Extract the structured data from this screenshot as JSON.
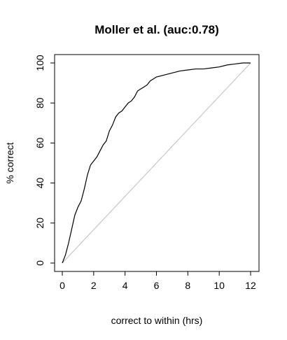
{
  "chart_data": {
    "type": "line",
    "title": "Moller et al. (auc:0.78)",
    "xlabel": "correct to within (hrs)",
    "ylabel": "% correct",
    "xlim": [
      0,
      12
    ],
    "ylim": [
      0,
      100
    ],
    "x_ticks": [
      0,
      2,
      4,
      6,
      8,
      10,
      12
    ],
    "y_ticks": [
      0,
      20,
      40,
      60,
      80,
      100
    ],
    "grid": false,
    "legend": "none",
    "colors": {
      "curve": "#000000",
      "reference": "#bebebe",
      "frame": "#000000"
    },
    "series": [
      {
        "values": [
          [
            0,
            0
          ],
          [
            0.2,
            4
          ],
          [
            0.4,
            10
          ],
          [
            0.6,
            17
          ],
          [
            0.8,
            24
          ],
          [
            1.0,
            28
          ],
          [
            1.2,
            31
          ],
          [
            1.4,
            37
          ],
          [
            1.6,
            44
          ],
          [
            1.8,
            49
          ],
          [
            2.0,
            51
          ],
          [
            2.2,
            53
          ],
          [
            2.4,
            56
          ],
          [
            2.6,
            59
          ],
          [
            2.8,
            61
          ],
          [
            3.0,
            66
          ],
          [
            3.2,
            69
          ],
          [
            3.4,
            73
          ],
          [
            3.6,
            75
          ],
          [
            3.8,
            76
          ],
          [
            4.0,
            78
          ],
          [
            4.2,
            80
          ],
          [
            4.4,
            81
          ],
          [
            4.6,
            83
          ],
          [
            4.8,
            86
          ],
          [
            5.0,
            87
          ],
          [
            5.2,
            88
          ],
          [
            5.4,
            89
          ],
          [
            5.6,
            91
          ],
          [
            5.8,
            92
          ],
          [
            6.0,
            93
          ],
          [
            6.5,
            94
          ],
          [
            7.0,
            95
          ],
          [
            7.5,
            96
          ],
          [
            8.0,
            96.5
          ],
          [
            8.5,
            97
          ],
          [
            9.0,
            97
          ],
          [
            9.5,
            97.5
          ],
          [
            10.0,
            98
          ],
          [
            10.5,
            99
          ],
          [
            11.0,
            99.5
          ],
          [
            11.5,
            100
          ],
          [
            12.0,
            100
          ]
        ]
      },
      {
        "values": [
          [
            0,
            0
          ],
          [
            12,
            100
          ]
        ]
      }
    ]
  }
}
